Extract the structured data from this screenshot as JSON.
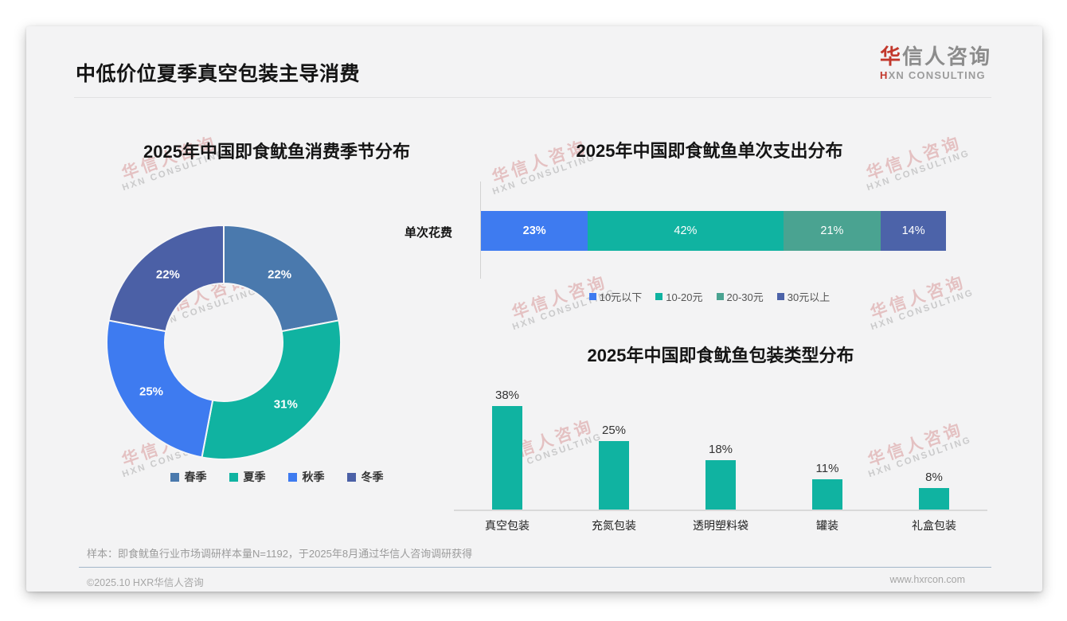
{
  "header": {
    "title": "中低价位夏季真空包装主导消费",
    "logo": {
      "cn_first": "华",
      "cn_rest": "信人咨询",
      "en_first": "H",
      "en_rest": "XN CONSULTING"
    }
  },
  "watermark": {
    "line1": "华信人咨询",
    "line2": "HXN CONSULTING"
  },
  "colors": {
    "logo_red": "#C2382C",
    "teal": "#10B3A1",
    "bright_blue": "#3E7BF0",
    "steel_blue": "#4A79AD",
    "slate_indigo": "#4B60A6",
    "sea_green": "#4AA391",
    "card_bg": "#F3F3F4"
  },
  "chart_data": [
    {
      "id": "season_donut",
      "type": "pie",
      "subtype": "donut",
      "title": "2025年中国即食鱿鱼消费季节分布",
      "labels": [
        "春季",
        "夏季",
        "秋季",
        "冬季"
      ],
      "values": [
        22,
        31,
        25,
        22
      ],
      "unit": "%",
      "colors": [
        "#4A79AD",
        "#10B3A1",
        "#3E7BF0",
        "#4B60A6"
      ],
      "start_angle_deg": 0,
      "direction": "clockwise",
      "legend_position": "bottom"
    },
    {
      "id": "spend_stacked",
      "type": "bar",
      "subtype": "horizontal-stacked",
      "title": "2025年中国即食鱿鱼单次支出分布",
      "category_label": "单次花费",
      "series": [
        {
          "name": "10元以下",
          "value": 23,
          "color": "#3E7BF0"
        },
        {
          "name": "10-20元",
          "value": 42,
          "color": "#10B3A1"
        },
        {
          "name": "20-30元",
          "value": 21,
          "color": "#4AA391"
        },
        {
          "name": "30元以上",
          "value": 14,
          "color": "#4C63A9"
        }
      ],
      "unit": "%",
      "xlim": [
        0,
        100
      ],
      "legend_position": "bottom"
    },
    {
      "id": "packaging_bars",
      "type": "bar",
      "title": "2025年中国即食鱿鱼包装类型分布",
      "categories": [
        "真空包装",
        "充氮包装",
        "透明塑料袋",
        "罐装",
        "礼盒包装"
      ],
      "values": [
        38,
        25,
        18,
        11,
        8
      ],
      "unit": "%",
      "bar_color": "#10B3A1",
      "grid": false,
      "legend_position": "none"
    }
  ],
  "footnote": "样本：即食鱿鱼行业市场调研样本量N=1192，于2025年8月通过华信人咨询调研获得",
  "footer": {
    "left": "©2025.10 HXR华信人咨询",
    "right": "www.hxrcon.com"
  }
}
